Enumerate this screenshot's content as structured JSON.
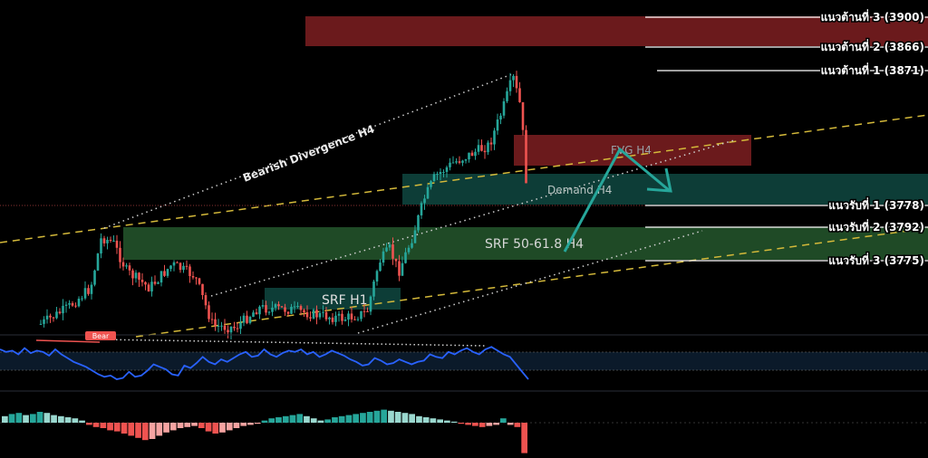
{
  "chart_data": {
    "type": "candlestick",
    "levels": {
      "resistance": [
        {
          "label": "แนวต้านที่ 3 (3900)",
          "price": 3900
        },
        {
          "label": "แนวต้านที่ 2 (3866)",
          "price": 3866
        },
        {
          "label": "แนวต้านที่ 1 (3871)",
          "price": 3871
        }
      ],
      "support": [
        {
          "label": "แนวรับที่ 1 (3778)",
          "price": 3778
        },
        {
          "label": "แนวรับที่ 2 (3792)",
          "price": 3792
        },
        {
          "label": "แนวรับที่ 3 (3775)",
          "price": 3775
        }
      ]
    },
    "zones": {
      "fvg": "FVG H4",
      "demand": "Demand H4",
      "srf_fib": "SRF 50-61.8 H4",
      "srf_h1": "SRF H1"
    },
    "annotations": {
      "divergence": "Bearish Divergence H4",
      "rsi_tag": "Bear"
    },
    "colors": {
      "background": "#000000",
      "bull": "#26a69a",
      "bear": "#ef5350",
      "trendline_dashed": "#d4b93a",
      "rsi_line": "#2962ff",
      "resistance_zone": "#6b1a1c",
      "demand_zone": "#0d3d37",
      "srf_zone": "#1f4a26",
      "arrow": "#26a69a"
    },
    "rsi": [
      62,
      60,
      61,
      58,
      63,
      59,
      61,
      60,
      57,
      62,
      58,
      55,
      52,
      50,
      48,
      45,
      42,
      40,
      41,
      38,
      39,
      44,
      40,
      41,
      45,
      50,
      48,
      46,
      42,
      41,
      49,
      47,
      51,
      56,
      52,
      50,
      54,
      52,
      55,
      58,
      60,
      56,
      57,
      62,
      58,
      56,
      59,
      61,
      60,
      62,
      58,
      60,
      56,
      58,
      61,
      59,
      57,
      54,
      52,
      49,
      50,
      55,
      53,
      50,
      51,
      54,
      52,
      50,
      52,
      53,
      58,
      56,
      55,
      60,
      58,
      61,
      63,
      60,
      58,
      62,
      64,
      61,
      58,
      56,
      50,
      44,
      38
    ],
    "histogram": [
      6,
      8,
      9,
      7,
      8,
      10,
      9,
      7,
      6,
      5,
      4,
      2,
      -2,
      -4,
      -5,
      -7,
      -8,
      -10,
      -12,
      -14,
      -16,
      -15,
      -12,
      -9,
      -7,
      -5,
      -4,
      -3,
      -5,
      -8,
      -10,
      -9,
      -7,
      -5,
      -3,
      -2,
      -1,
      2,
      4,
      5,
      6,
      7,
      8,
      6,
      4,
      2,
      3,
      5,
      6,
      7,
      8,
      9,
      10,
      11,
      12,
      11,
      10,
      9,
      8,
      6,
      5,
      4,
      3,
      2,
      1,
      -1,
      -2,
      -3,
      -4,
      -3,
      -2,
      4,
      -2,
      -4,
      -28
    ]
  }
}
